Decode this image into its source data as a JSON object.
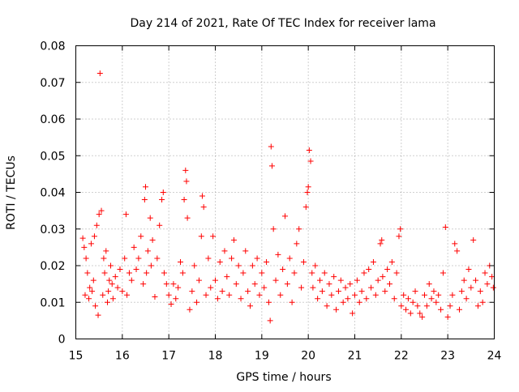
{
  "chart_data": {
    "type": "scatter",
    "title": "Day 214 of 2021, Rate Of TEC Index for receiver lama",
    "xlabel": "GPS time / hours",
    "ylabel": "ROTI / TECUs",
    "xlim": [
      15,
      24
    ],
    "ylim": [
      0,
      0.08
    ],
    "x_ticks": [
      "15",
      "16",
      "17",
      "18",
      "19",
      "20",
      "21",
      "22",
      "23",
      "24"
    ],
    "y_ticks": [
      "0",
      "0.01",
      "0.02",
      "0.03",
      "0.04",
      "0.05",
      "0.06",
      "0.07",
      "0.08"
    ],
    "grid": true,
    "marker": "+",
    "color": "#ff0000",
    "series": [
      {
        "name": "ROTI",
        "points": [
          [
            15.15,
            0.0275
          ],
          [
            15.18,
            0.025
          ],
          [
            15.2,
            0.012
          ],
          [
            15.22,
            0.022
          ],
          [
            15.25,
            0.018
          ],
          [
            15.28,
            0.011
          ],
          [
            15.3,
            0.014
          ],
          [
            15.33,
            0.026
          ],
          [
            15.35,
            0.013
          ],
          [
            15.38,
            0.016
          ],
          [
            15.4,
            0.028
          ],
          [
            15.42,
            0.009
          ],
          [
            15.45,
            0.031
          ],
          [
            15.48,
            0.0065
          ],
          [
            15.5,
            0.034
          ],
          [
            15.52,
            0.0725
          ],
          [
            15.55,
            0.035
          ],
          [
            15.58,
            0.012
          ],
          [
            15.6,
            0.022
          ],
          [
            15.62,
            0.018
          ],
          [
            15.65,
            0.024
          ],
          [
            15.68,
            0.01
          ],
          [
            15.7,
            0.013
          ],
          [
            15.72,
            0.016
          ],
          [
            15.75,
            0.02
          ],
          [
            15.78,
            0.015
          ],
          [
            15.8,
            0.011
          ],
          [
            15.85,
            0.017
          ],
          [
            15.9,
            0.014
          ],
          [
            15.95,
            0.019
          ],
          [
            16.0,
            0.013
          ],
          [
            16.05,
            0.022
          ],
          [
            16.08,
            0.034
          ],
          [
            16.1,
            0.012
          ],
          [
            16.15,
            0.018
          ],
          [
            16.2,
            0.016
          ],
          [
            16.25,
            0.025
          ],
          [
            16.3,
            0.019
          ],
          [
            16.35,
            0.022
          ],
          [
            16.4,
            0.028
          ],
          [
            16.45,
            0.015
          ],
          [
            16.48,
            0.038
          ],
          [
            16.5,
            0.0415
          ],
          [
            16.52,
            0.018
          ],
          [
            16.55,
            0.024
          ],
          [
            16.6,
            0.033
          ],
          [
            16.62,
            0.02
          ],
          [
            16.65,
            0.027
          ],
          [
            16.7,
            0.0115
          ],
          [
            16.75,
            0.022
          ],
          [
            16.8,
            0.031
          ],
          [
            16.85,
            0.038
          ],
          [
            16.88,
            0.04
          ],
          [
            16.9,
            0.018
          ],
          [
            16.95,
            0.015
          ],
          [
            17.0,
            0.012
          ],
          [
            17.05,
            0.0095
          ],
          [
            17.1,
            0.015
          ],
          [
            17.15,
            0.011
          ],
          [
            17.2,
            0.014
          ],
          [
            17.25,
            0.021
          ],
          [
            17.3,
            0.018
          ],
          [
            17.33,
            0.038
          ],
          [
            17.36,
            0.046
          ],
          [
            17.38,
            0.043
          ],
          [
            17.4,
            0.033
          ],
          [
            17.45,
            0.008
          ],
          [
            17.5,
            0.013
          ],
          [
            17.55,
            0.02
          ],
          [
            17.6,
            0.01
          ],
          [
            17.65,
            0.016
          ],
          [
            17.7,
            0.028
          ],
          [
            17.72,
            0.039
          ],
          [
            17.75,
            0.036
          ],
          [
            17.8,
            0.012
          ],
          [
            17.85,
            0.022
          ],
          [
            17.9,
            0.014
          ],
          [
            17.95,
            0.028
          ],
          [
            18.0,
            0.016
          ],
          [
            18.05,
            0.011
          ],
          [
            18.1,
            0.021
          ],
          [
            18.15,
            0.013
          ],
          [
            18.2,
            0.024
          ],
          [
            18.25,
            0.017
          ],
          [
            18.3,
            0.012
          ],
          [
            18.35,
            0.022
          ],
          [
            18.4,
            0.027
          ],
          [
            18.45,
            0.015
          ],
          [
            18.5,
            0.02
          ],
          [
            18.55,
            0.011
          ],
          [
            18.6,
            0.018
          ],
          [
            18.65,
            0.024
          ],
          [
            18.7,
            0.013
          ],
          [
            18.75,
            0.009
          ],
          [
            18.8,
            0.02
          ],
          [
            18.85,
            0.015
          ],
          [
            18.9,
            0.022
          ],
          [
            18.95,
            0.012
          ],
          [
            19.0,
            0.018
          ],
          [
            19.05,
            0.014
          ],
          [
            19.1,
            0.021
          ],
          [
            19.15,
            0.01
          ],
          [
            19.18,
            0.005
          ],
          [
            19.2,
            0.0525
          ],
          [
            19.22,
            0.0472
          ],
          [
            19.25,
            0.03
          ],
          [
            19.3,
            0.016
          ],
          [
            19.35,
            0.023
          ],
          [
            19.4,
            0.012
          ],
          [
            19.45,
            0.019
          ],
          [
            19.5,
            0.0335
          ],
          [
            19.55,
            0.015
          ],
          [
            19.6,
            0.022
          ],
          [
            19.65,
            0.01
          ],
          [
            19.7,
            0.018
          ],
          [
            19.75,
            0.026
          ],
          [
            19.8,
            0.03
          ],
          [
            19.85,
            0.014
          ],
          [
            19.9,
            0.021
          ],
          [
            19.95,
            0.036
          ],
          [
            19.98,
            0.04
          ],
          [
            20.0,
            0.0415
          ],
          [
            20.02,
            0.0515
          ],
          [
            20.05,
            0.0485
          ],
          [
            20.08,
            0.018
          ],
          [
            20.1,
            0.014
          ],
          [
            20.15,
            0.02
          ],
          [
            20.2,
            0.011
          ],
          [
            20.25,
            0.016
          ],
          [
            20.3,
            0.013
          ],
          [
            20.35,
            0.018
          ],
          [
            20.4,
            0.009
          ],
          [
            20.45,
            0.015
          ],
          [
            20.5,
            0.012
          ],
          [
            20.55,
            0.017
          ],
          [
            20.6,
            0.008
          ],
          [
            20.65,
            0.013
          ],
          [
            20.7,
            0.016
          ],
          [
            20.75,
            0.01
          ],
          [
            20.8,
            0.014
          ],
          [
            20.85,
            0.011
          ],
          [
            20.9,
            0.015
          ],
          [
            20.95,
            0.007
          ],
          [
            21.0,
            0.012
          ],
          [
            21.05,
            0.016
          ],
          [
            21.1,
            0.01
          ],
          [
            21.15,
            0.013
          ],
          [
            21.2,
            0.018
          ],
          [
            21.25,
            0.011
          ],
          [
            21.3,
            0.019
          ],
          [
            21.35,
            0.014
          ],
          [
            21.4,
            0.021
          ],
          [
            21.45,
            0.012
          ],
          [
            21.5,
            0.016
          ],
          [
            21.55,
            0.026
          ],
          [
            21.58,
            0.027
          ],
          [
            21.6,
            0.017
          ],
          [
            21.65,
            0.013
          ],
          [
            21.7,
            0.019
          ],
          [
            21.75,
            0.015
          ],
          [
            21.8,
            0.021
          ],
          [
            21.85,
            0.011
          ],
          [
            21.9,
            0.018
          ],
          [
            21.95,
            0.028
          ],
          [
            21.98,
            0.03
          ],
          [
            22.0,
            0.009
          ],
          [
            22.05,
            0.012
          ],
          [
            22.1,
            0.008
          ],
          [
            22.15,
            0.011
          ],
          [
            22.2,
            0.007
          ],
          [
            22.25,
            0.01
          ],
          [
            22.3,
            0.013
          ],
          [
            22.35,
            0.009
          ],
          [
            22.4,
            0.007
          ],
          [
            22.45,
            0.006
          ],
          [
            22.5,
            0.012
          ],
          [
            22.55,
            0.009
          ],
          [
            22.6,
            0.015
          ],
          [
            22.65,
            0.011
          ],
          [
            22.7,
            0.013
          ],
          [
            22.75,
            0.01
          ],
          [
            22.8,
            0.012
          ],
          [
            22.85,
            0.008
          ],
          [
            22.9,
            0.018
          ],
          [
            22.95,
            0.0305
          ],
          [
            23.0,
            0.006
          ],
          [
            23.05,
            0.009
          ],
          [
            23.1,
            0.012
          ],
          [
            23.15,
            0.026
          ],
          [
            23.2,
            0.024
          ],
          [
            23.25,
            0.008
          ],
          [
            23.3,
            0.013
          ],
          [
            23.35,
            0.016
          ],
          [
            23.4,
            0.011
          ],
          [
            23.45,
            0.019
          ],
          [
            23.5,
            0.014
          ],
          [
            23.55,
            0.027
          ],
          [
            23.6,
            0.016
          ],
          [
            23.65,
            0.009
          ],
          [
            23.7,
            0.013
          ],
          [
            23.75,
            0.01
          ],
          [
            23.8,
            0.018
          ],
          [
            23.85,
            0.015
          ],
          [
            23.9,
            0.02
          ],
          [
            23.95,
            0.017
          ],
          [
            23.98,
            0.014
          ]
        ]
      }
    ]
  }
}
